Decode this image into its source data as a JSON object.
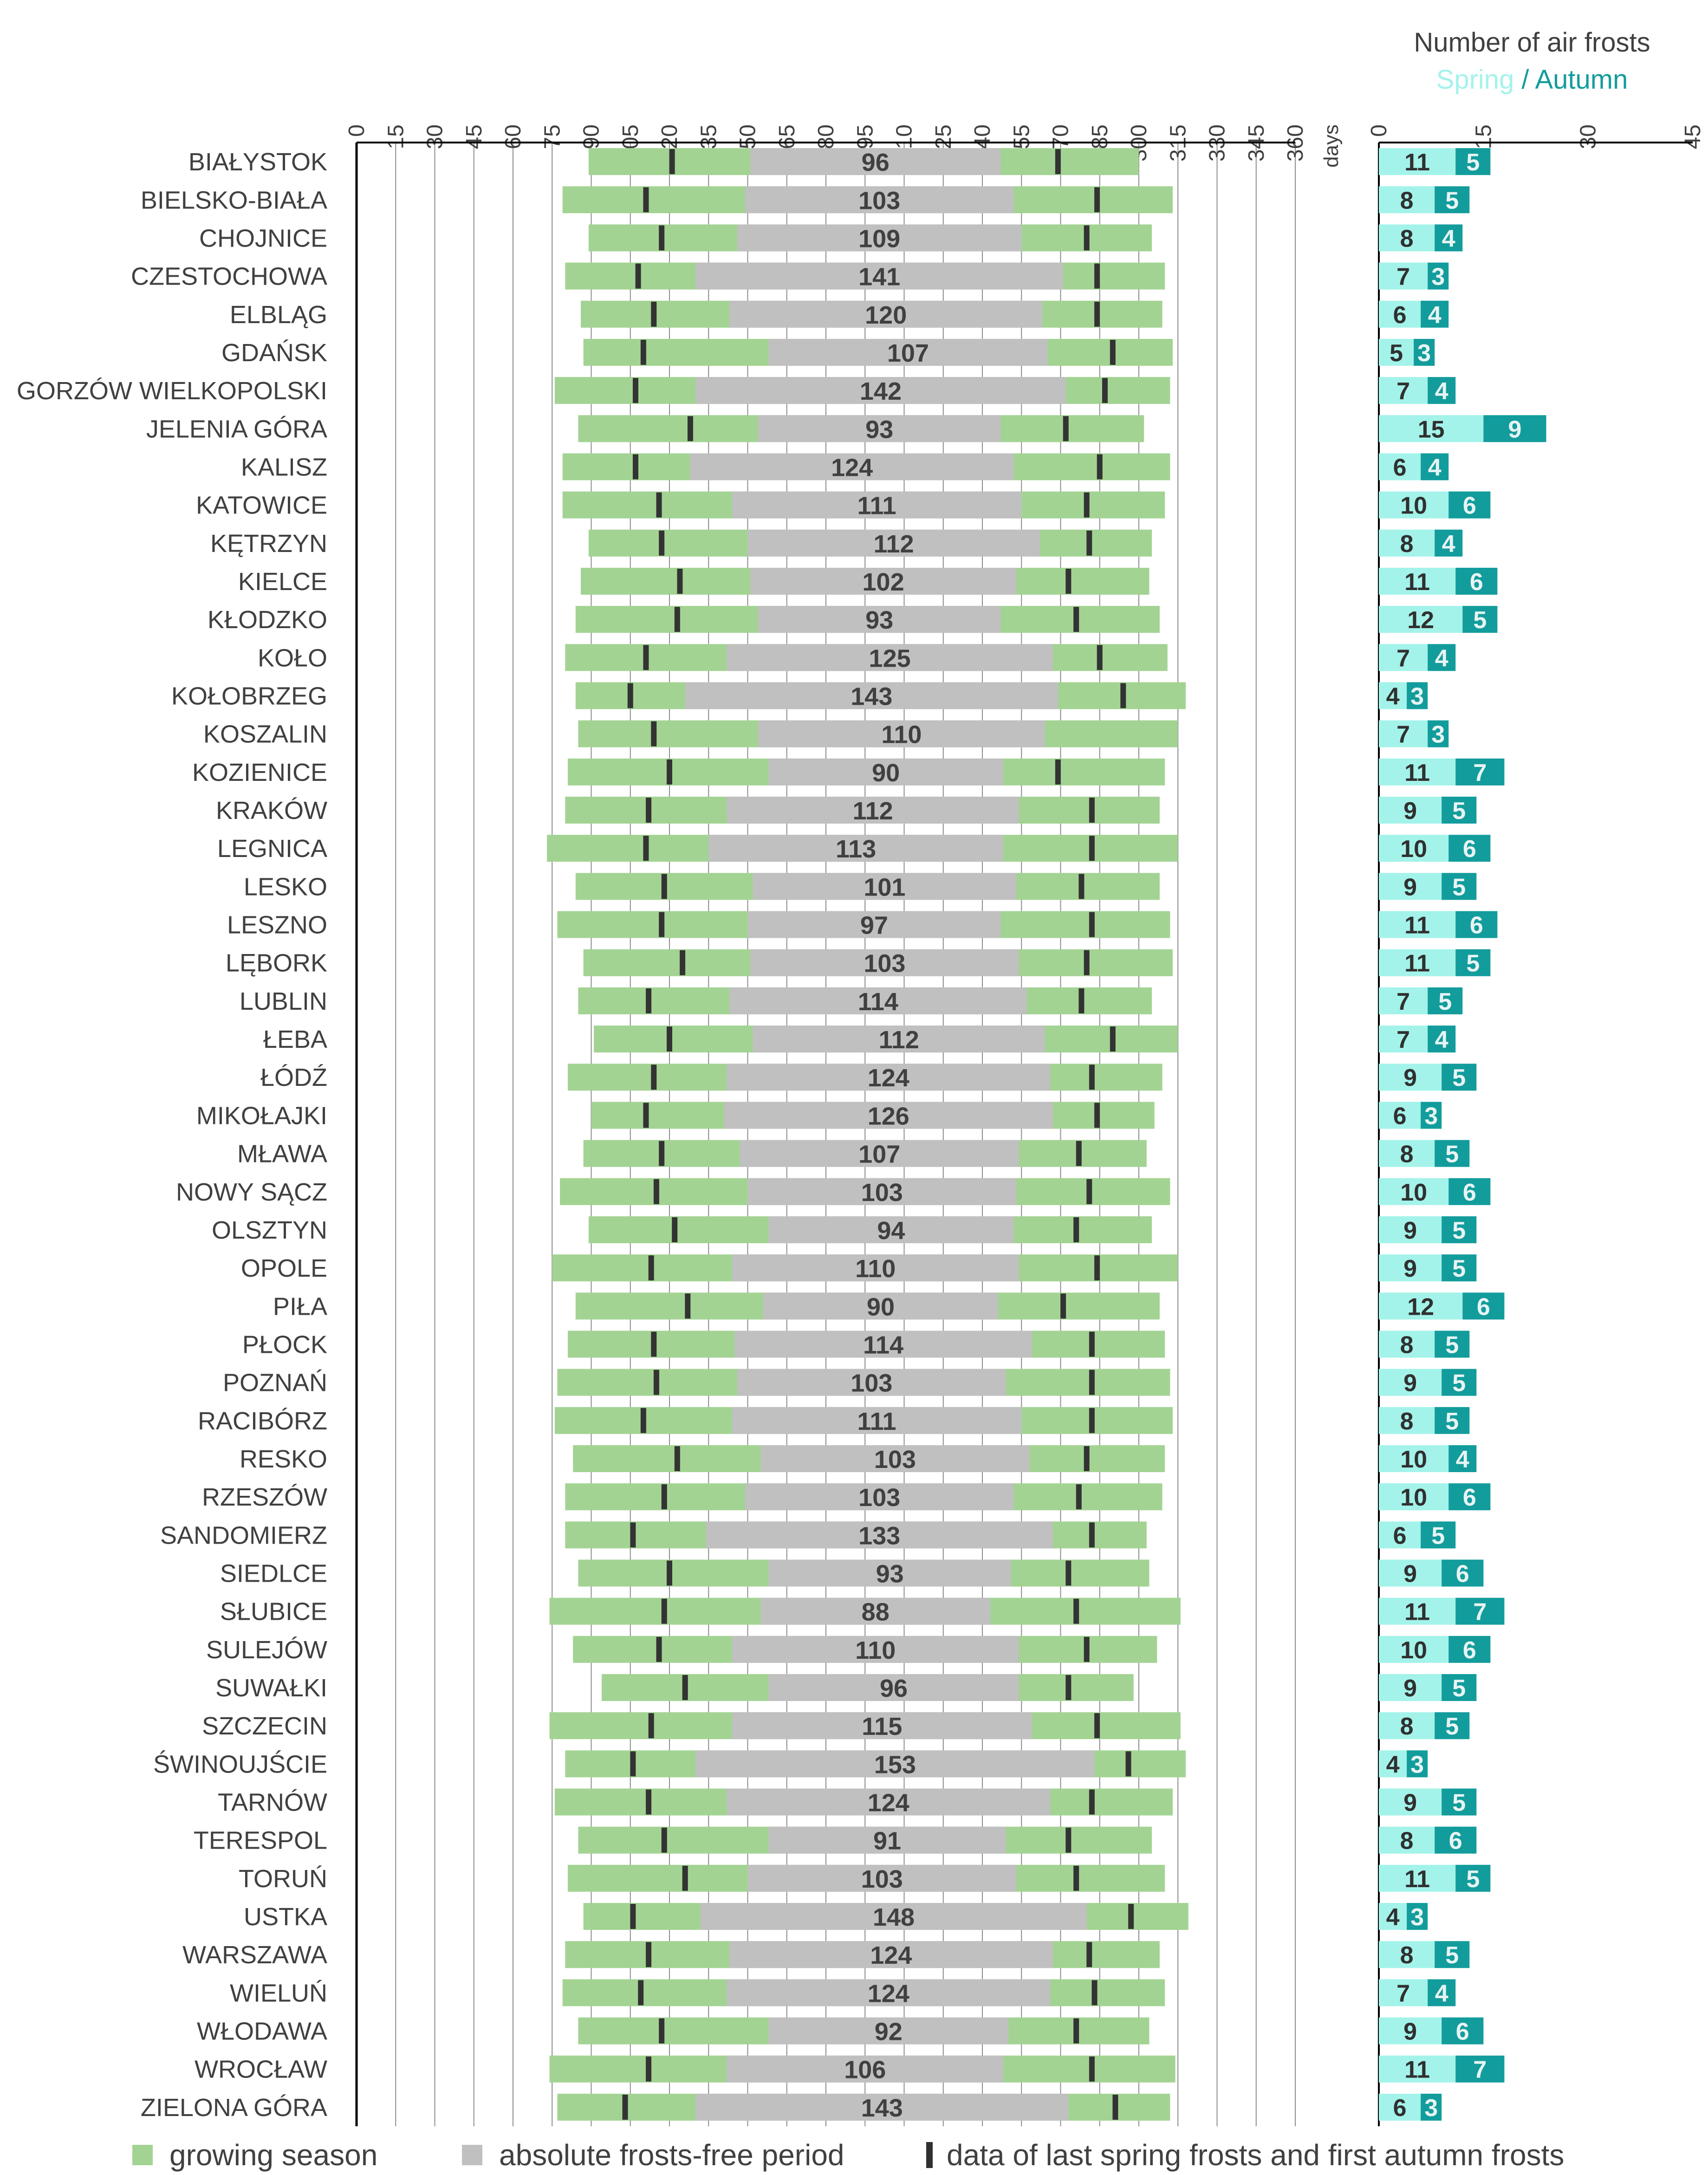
{
  "chart_data": [
    {
      "type": "bar",
      "subtype": "horizontal-range",
      "title": "",
      "xlabel": "days",
      "xlim": [
        0,
        360
      ],
      "xticks": [
        0,
        15,
        30,
        45,
        60,
        75,
        90,
        105,
        120,
        135,
        150,
        165,
        180,
        195,
        210,
        225,
        240,
        255,
        270,
        285,
        300,
        315,
        330,
        345,
        360
      ],
      "grid": true,
      "series_legend": {
        "growing_season": "growing season",
        "frost_free": "absolute frosts-free period",
        "frost_dates": "data of last spring frosts and first autumn frosts"
      },
      "colors": {
        "growing_season": "#a3d393",
        "frost_free": "#c0c0c0",
        "frost_dates": "#333333"
      },
      "stations": [
        {
          "name": "BIAŁYSTOK",
          "gs_start": 89,
          "gs_end": 300,
          "ff_start": 151,
          "ff_end": 247,
          "frost_free_days": 96,
          "last_spring_frost": 121,
          "first_autumn_frost": 269
        },
        {
          "name": "BIELSKO-BIAŁA",
          "gs_start": 79,
          "gs_end": 313,
          "ff_start": 149,
          "ff_end": 252,
          "frost_free_days": 103,
          "last_spring_frost": 111,
          "first_autumn_frost": 284
        },
        {
          "name": "CHOJNICE",
          "gs_start": 89,
          "gs_end": 305,
          "ff_start": 146,
          "ff_end": 255,
          "frost_free_days": 109,
          "last_spring_frost": 117,
          "first_autumn_frost": 280
        },
        {
          "name": "CZESTOCHOWA",
          "gs_start": 80,
          "gs_end": 310,
          "ff_start": 130,
          "ff_end": 271,
          "frost_free_days": 141,
          "last_spring_frost": 108,
          "first_autumn_frost": 284
        },
        {
          "name": "ELBLĄG",
          "gs_start": 86,
          "gs_end": 309,
          "ff_start": 143,
          "ff_end": 263,
          "frost_free_days": 120,
          "last_spring_frost": 114,
          "first_autumn_frost": 284
        },
        {
          "name": "GDAŃSK",
          "gs_start": 87,
          "gs_end": 313,
          "ff_start": 158,
          "ff_end": 265,
          "frost_free_days": 107,
          "last_spring_frost": 110,
          "first_autumn_frost": 290
        },
        {
          "name": "GORZÓW WIELKOPOLSKI",
          "gs_start": 76,
          "gs_end": 312,
          "ff_start": 130,
          "ff_end": 272,
          "frost_free_days": 142,
          "last_spring_frost": 107,
          "first_autumn_frost": 287
        },
        {
          "name": "JELENIA GÓRA",
          "gs_start": 85,
          "gs_end": 302,
          "ff_start": 154,
          "ff_end": 247,
          "frost_free_days": 93,
          "last_spring_frost": 128,
          "first_autumn_frost": 272
        },
        {
          "name": "KALISZ",
          "gs_start": 79,
          "gs_end": 312,
          "ff_start": 128,
          "ff_end": 252,
          "frost_free_days": 124,
          "last_spring_frost": 107,
          "first_autumn_frost": 285
        },
        {
          "name": "KATOWICE",
          "gs_start": 79,
          "gs_end": 310,
          "ff_start": 144,
          "ff_end": 255,
          "frost_free_days": 111,
          "last_spring_frost": 116,
          "first_autumn_frost": 280
        },
        {
          "name": "KĘTRZYN",
          "gs_start": 89,
          "gs_end": 305,
          "ff_start": 150,
          "ff_end": 262,
          "frost_free_days": 112,
          "last_spring_frost": 117,
          "first_autumn_frost": 281
        },
        {
          "name": "KIELCE",
          "gs_start": 86,
          "gs_end": 304,
          "ff_start": 151,
          "ff_end": 253,
          "frost_free_days": 102,
          "last_spring_frost": 124,
          "first_autumn_frost": 273
        },
        {
          "name": "KŁODZKO",
          "gs_start": 84,
          "gs_end": 308,
          "ff_start": 154,
          "ff_end": 247,
          "frost_free_days": 93,
          "last_spring_frost": 123,
          "first_autumn_frost": 276
        },
        {
          "name": "KOŁO",
          "gs_start": 80,
          "gs_end": 311,
          "ff_start": 142,
          "ff_end": 267,
          "frost_free_days": 125,
          "last_spring_frost": 111,
          "first_autumn_frost": 285
        },
        {
          "name": "KOŁOBRZEG",
          "gs_start": 84,
          "gs_end": 318,
          "ff_start": 126,
          "ff_end": 269,
          "frost_free_days": 143,
          "last_spring_frost": 105,
          "first_autumn_frost": 294
        },
        {
          "name": "KOSZALIN",
          "gs_start": 85,
          "gs_end": 315,
          "ff_start": 154,
          "ff_end": 264,
          "frost_free_days": 110,
          "last_spring_frost": 114,
          "first_autumn_frost": null
        },
        {
          "name": "KOZIENICE",
          "gs_start": 81,
          "gs_end": 310,
          "ff_start": 158,
          "ff_end": 248,
          "frost_free_days": 90,
          "last_spring_frost": 120,
          "first_autumn_frost": 269
        },
        {
          "name": "KRAKÓW",
          "gs_start": 80,
          "gs_end": 308,
          "ff_start": 142,
          "ff_end": 254,
          "frost_free_days": 112,
          "last_spring_frost": 112,
          "first_autumn_frost": 282
        },
        {
          "name": "LEGNICA",
          "gs_start": 73,
          "gs_end": 315,
          "ff_start": 135,
          "ff_end": 248,
          "frost_free_days": 113,
          "last_spring_frost": 111,
          "first_autumn_frost": 282
        },
        {
          "name": "LESKO",
          "gs_start": 84,
          "gs_end": 308,
          "ff_start": 152,
          "ff_end": 253,
          "frost_free_days": 101,
          "last_spring_frost": 118,
          "first_autumn_frost": 278
        },
        {
          "name": "LESZNO",
          "gs_start": 77,
          "gs_end": 312,
          "ff_start": 150,
          "ff_end": 247,
          "frost_free_days": 97,
          "last_spring_frost": 117,
          "first_autumn_frost": 282
        },
        {
          "name": "LĘBORK",
          "gs_start": 87,
          "gs_end": 313,
          "ff_start": 151,
          "ff_end": 254,
          "frost_free_days": 103,
          "last_spring_frost": 125,
          "first_autumn_frost": 280
        },
        {
          "name": "LUBLIN",
          "gs_start": 85,
          "gs_end": 305,
          "ff_start": 143,
          "ff_end": 257,
          "frost_free_days": 114,
          "last_spring_frost": 112,
          "first_autumn_frost": 278
        },
        {
          "name": "ŁEBA",
          "gs_start": 91,
          "gs_end": 315,
          "ff_start": 152,
          "ff_end": 264,
          "frost_free_days": 112,
          "last_spring_frost": 120,
          "first_autumn_frost": 290
        },
        {
          "name": "ŁÓDŹ",
          "gs_start": 81,
          "gs_end": 309,
          "ff_start": 142,
          "ff_end": 266,
          "frost_free_days": 124,
          "last_spring_frost": 114,
          "first_autumn_frost": 282
        },
        {
          "name": "MIKOŁAJKI",
          "gs_start": 90,
          "gs_end": 306,
          "ff_start": 141,
          "ff_end": 267,
          "frost_free_days": 126,
          "last_spring_frost": 111,
          "first_autumn_frost": 284
        },
        {
          "name": "MŁAWA",
          "gs_start": 87,
          "gs_end": 303,
          "ff_start": 147,
          "ff_end": 254,
          "frost_free_days": 107,
          "last_spring_frost": 117,
          "first_autumn_frost": 277
        },
        {
          "name": "NOWY SĄCZ",
          "gs_start": 78,
          "gs_end": 312,
          "ff_start": 150,
          "ff_end": 253,
          "frost_free_days": 103,
          "last_spring_frost": 115,
          "first_autumn_frost": 281
        },
        {
          "name": "OLSZTYN",
          "gs_start": 89,
          "gs_end": 305,
          "ff_start": 158,
          "ff_end": 252,
          "frost_free_days": 94,
          "last_spring_frost": 122,
          "first_autumn_frost": 276
        },
        {
          "name": "OPOLE",
          "gs_start": 75,
          "gs_end": 315,
          "ff_start": 144,
          "ff_end": 254,
          "frost_free_days": 110,
          "last_spring_frost": 113,
          "first_autumn_frost": 284
        },
        {
          "name": "PIŁA",
          "gs_start": 84,
          "gs_end": 308,
          "ff_start": 156,
          "ff_end": 246,
          "frost_free_days": 90,
          "last_spring_frost": 127,
          "first_autumn_frost": 271
        },
        {
          "name": "PŁOCK",
          "gs_start": 81,
          "gs_end": 310,
          "ff_start": 145,
          "ff_end": 259,
          "frost_free_days": 114,
          "last_spring_frost": 114,
          "first_autumn_frost": 282
        },
        {
          "name": "POZNAŃ",
          "gs_start": 77,
          "gs_end": 312,
          "ff_start": 146,
          "ff_end": 249,
          "frost_free_days": 103,
          "last_spring_frost": 115,
          "first_autumn_frost": 282
        },
        {
          "name": "RACIBÓRZ",
          "gs_start": 76,
          "gs_end": 313,
          "ff_start": 144,
          "ff_end": 255,
          "frost_free_days": 111,
          "last_spring_frost": 110,
          "first_autumn_frost": 282
        },
        {
          "name": "RESKO",
          "gs_start": 83,
          "gs_end": 310,
          "ff_start": 155,
          "ff_end": 258,
          "frost_free_days": 103,
          "last_spring_frost": 123,
          "first_autumn_frost": 280
        },
        {
          "name": "RZESZÓW",
          "gs_start": 80,
          "gs_end": 309,
          "ff_start": 149,
          "ff_end": 252,
          "frost_free_days": 103,
          "last_spring_frost": 118,
          "first_autumn_frost": 277
        },
        {
          "name": "SANDOMIERZ",
          "gs_start": 80,
          "gs_end": 303,
          "ff_start": 134,
          "ff_end": 267,
          "frost_free_days": 133,
          "last_spring_frost": 106,
          "first_autumn_frost": 282
        },
        {
          "name": "SIEDLCE",
          "gs_start": 85,
          "gs_end": 304,
          "ff_start": 158,
          "ff_end": 251,
          "frost_free_days": 93,
          "last_spring_frost": 120,
          "first_autumn_frost": 273
        },
        {
          "name": "SŁUBICE",
          "gs_start": 74,
          "gs_end": 316,
          "ff_start": 155,
          "ff_end": 243,
          "frost_free_days": 88,
          "last_spring_frost": 118,
          "first_autumn_frost": 276
        },
        {
          "name": "SULEJÓW",
          "gs_start": 83,
          "gs_end": 307,
          "ff_start": 144,
          "ff_end": 254,
          "frost_free_days": 110,
          "last_spring_frost": 116,
          "first_autumn_frost": 280
        },
        {
          "name": "SUWAŁKI",
          "gs_start": 94,
          "gs_end": 298,
          "ff_start": 158,
          "ff_end": 254,
          "frost_free_days": 96,
          "last_spring_frost": 126,
          "first_autumn_frost": 273
        },
        {
          "name": "SZCZECIN",
          "gs_start": 74,
          "gs_end": 316,
          "ff_start": 144,
          "ff_end": 259,
          "frost_free_days": 115,
          "last_spring_frost": 113,
          "first_autumn_frost": 284
        },
        {
          "name": "ŚWINOUJŚCIE",
          "gs_start": 80,
          "gs_end": 318,
          "ff_start": 130,
          "ff_end": 283,
          "frost_free_days": 153,
          "last_spring_frost": 106,
          "first_autumn_frost": 296
        },
        {
          "name": "TARNÓW",
          "gs_start": 76,
          "gs_end": 313,
          "ff_start": 142,
          "ff_end": 266,
          "frost_free_days": 124,
          "last_spring_frost": 112,
          "first_autumn_frost": 282
        },
        {
          "name": "TERESPOL",
          "gs_start": 85,
          "gs_end": 305,
          "ff_start": 158,
          "ff_end": 249,
          "frost_free_days": 91,
          "last_spring_frost": 118,
          "first_autumn_frost": 273
        },
        {
          "name": "TORUŃ",
          "gs_start": 81,
          "gs_end": 310,
          "ff_start": 150,
          "ff_end": 253,
          "frost_free_days": 103,
          "last_spring_frost": 126,
          "first_autumn_frost": 276
        },
        {
          "name": "USTKA",
          "gs_start": 87,
          "gs_end": 319,
          "ff_start": 132,
          "ff_end": 280,
          "frost_free_days": 148,
          "last_spring_frost": 106,
          "first_autumn_frost": 297
        },
        {
          "name": "WARSZAWA",
          "gs_start": 80,
          "gs_end": 308,
          "ff_start": 143,
          "ff_end": 267,
          "frost_free_days": 124,
          "last_spring_frost": 112,
          "first_autumn_frost": 281
        },
        {
          "name": "WIELUŃ",
          "gs_start": 79,
          "gs_end": 310,
          "ff_start": 142,
          "ff_end": 266,
          "frost_free_days": 124,
          "last_spring_frost": 109,
          "first_autumn_frost": 283
        },
        {
          "name": "WŁODAWA",
          "gs_start": 85,
          "gs_end": 304,
          "ff_start": 158,
          "ff_end": 250,
          "frost_free_days": 92,
          "last_spring_frost": 117,
          "first_autumn_frost": 276
        },
        {
          "name": "WROCŁAW",
          "gs_start": 74,
          "gs_end": 314,
          "ff_start": 142,
          "ff_end": 248,
          "frost_free_days": 106,
          "last_spring_frost": 112,
          "first_autumn_frost": 282
        },
        {
          "name": "ZIELONA GÓRA",
          "gs_start": 77,
          "gs_end": 312,
          "ff_start": 130,
          "ff_end": 273,
          "frost_free_days": 143,
          "last_spring_frost": 103,
          "first_autumn_frost": 291
        }
      ]
    },
    {
      "type": "bar",
      "subtype": "stacked-horizontal",
      "title": "Number of air frosts",
      "legend": [
        "Spring",
        "Autumn"
      ],
      "legend_separator": " / ",
      "xlim": [
        0,
        45
      ],
      "xticks": [
        0,
        15,
        30,
        45
      ],
      "grid": false,
      "colors": {
        "spring": "#a3f3ea",
        "autumn": "#139c9c"
      },
      "series": [
        {
          "name": "Spring",
          "values": [
            11,
            8,
            8,
            7,
            6,
            5,
            7,
            15,
            6,
            10,
            8,
            11,
            12,
            7,
            4,
            7,
            11,
            9,
            10,
            9,
            11,
            11,
            7,
            7,
            9,
            6,
            8,
            10,
            9,
            9,
            12,
            8,
            9,
            8,
            10,
            10,
            6,
            9,
            11,
            10,
            9,
            8,
            4,
            9,
            8,
            11,
            4,
            8,
            7,
            9,
            11,
            6
          ]
        },
        {
          "name": "Autumn",
          "values": [
            5,
            5,
            4,
            3,
            4,
            3,
            4,
            9,
            4,
            6,
            4,
            6,
            5,
            4,
            3,
            3,
            7,
            5,
            6,
            5,
            6,
            5,
            5,
            4,
            5,
            3,
            5,
            6,
            5,
            5,
            6,
            5,
            5,
            5,
            4,
            6,
            5,
            6,
            7,
            6,
            5,
            5,
            3,
            5,
            6,
            5,
            3,
            5,
            4,
            6,
            7,
            3
          ]
        }
      ]
    }
  ]
}
